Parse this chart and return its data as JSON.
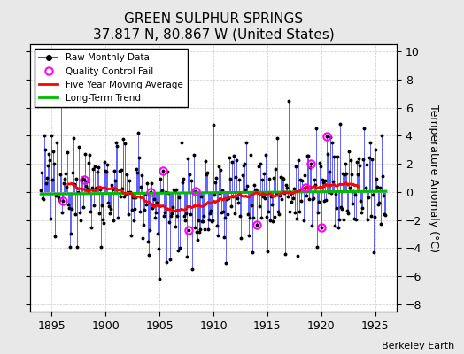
{
  "title": "GREEN SULPHUR SPRINGS",
  "subtitle": "37.817 N, 80.867 W (United States)",
  "watermark": "Berkeley Earth",
  "ylabel": "Temperature Anomaly (°C)",
  "xlim": [
    1893.0,
    1927.0
  ],
  "ylim": [
    -8.5,
    10.5
  ],
  "yticks": [
    -8,
    -6,
    -4,
    -2,
    0,
    2,
    4,
    6,
    8,
    10
  ],
  "xticks": [
    1895,
    1900,
    1905,
    1910,
    1915,
    1920,
    1925
  ],
  "raw_color": "#4444ff",
  "ma_color": "#ff0000",
  "trend_color": "#00bb00",
  "qc_color": "#ff00ff",
  "background_color": "#e8e8e8",
  "plot_bg_color": "#ffffff",
  "seed": 12345,
  "start_year": 1894,
  "end_year": 1926,
  "months_per_year": 12
}
